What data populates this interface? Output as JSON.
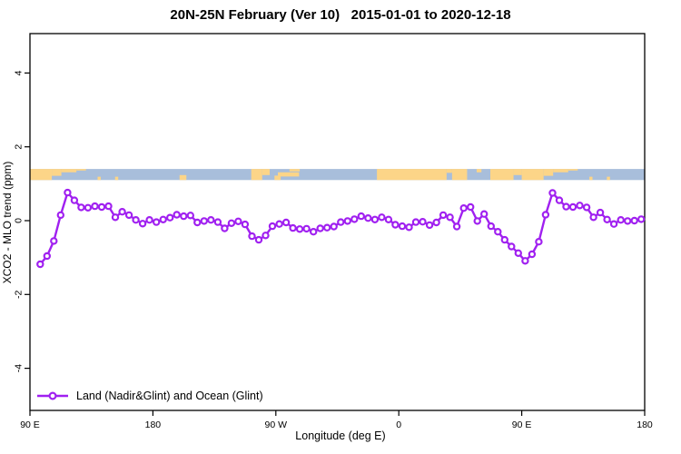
{
  "title": "20N-25N February (Ver 10)   2015-01-01 to 2020-12-18",
  "legend": {
    "label": "Land (Nadir&Glint) and Ocean (Glint)"
  },
  "colors": {
    "series": "#A020F0",
    "marker_fill": "#FFFFFF",
    "land": "#FCD588",
    "ocean": "#A8BEDB",
    "axis": "#000000",
    "background": "#FFFFFF"
  },
  "chart_data": {
    "type": "line",
    "title": "20N-25N February (Ver 10)   2015-01-01 to 2020-12-18",
    "xlabel": "Longitude (deg E)",
    "ylabel": "XCO2 - MLO trend (ppm)",
    "x_ticks": [
      {
        "label": "90 E",
        "lon": 90
      },
      {
        "label": "180",
        "lon": 180
      },
      {
        "label": "90 W",
        "lon": 270
      },
      {
        "label": "0",
        "lon": 360
      },
      {
        "label": "90 E",
        "lon": 450
      },
      {
        "label": "180",
        "lon": 540
      }
    ],
    "y_ticks": [
      "-4",
      "-2",
      "0",
      "2",
      "4"
    ],
    "y_tick_values": [
      -4,
      -2,
      0,
      2,
      4
    ],
    "xlim": [
      90,
      540
    ],
    "ylim": [
      -4.9,
      4.9
    ],
    "grid": false,
    "legend_position": "bottom-left",
    "series": [
      {
        "name": "Land (Nadir&Glint) and Ocean (Glint)",
        "marker": "open-circle",
        "x_start": 97.5,
        "x_step": 5,
        "x": [
          97.5,
          102.5,
          107.5,
          112.5,
          117.5,
          122.5,
          127.5,
          132.5,
          137.5,
          142.5,
          147.5,
          152.5,
          157.5,
          162.5,
          167.5,
          172.5,
          177.5,
          182.5,
          187.5,
          192.5,
          197.5,
          202.5,
          207.5,
          212.5,
          217.5,
          222.5,
          227.5,
          232.5,
          237.5,
          242.5,
          247.5,
          252.5,
          257.5,
          262.5,
          267.5,
          272.5,
          277.5,
          282.5,
          287.5,
          292.5,
          297.5,
          302.5,
          307.5,
          312.5,
          317.5,
          322.5,
          327.5,
          332.5,
          337.5,
          342.5,
          347.5,
          352.5,
          357.5,
          362.5,
          367.5,
          372.5,
          377.5,
          382.5,
          387.5,
          392.5,
          397.5,
          402.5,
          407.5,
          412.5,
          417.5,
          422.5,
          427.5,
          432.5,
          437.5,
          442.5,
          447.5,
          452.5,
          457.5,
          462.5,
          467.5,
          472.5,
          477.5,
          482.5,
          487.5,
          492.5,
          497.5,
          502.5,
          507.5,
          512.5,
          517.5,
          522.5,
          527.5,
          532.5,
          537.5
        ],
        "values": [
          -1.18,
          -0.96,
          -0.55,
          0.15,
          0.76,
          0.55,
          0.36,
          0.35,
          0.39,
          0.37,
          0.39,
          0.09,
          0.24,
          0.15,
          0.02,
          -0.08,
          0.02,
          -0.04,
          0.03,
          0.08,
          0.16,
          0.12,
          0.14,
          -0.05,
          -0.01,
          0.02,
          -0.04,
          -0.21,
          -0.07,
          -0.02,
          -0.1,
          -0.42,
          -0.52,
          -0.4,
          -0.15,
          -0.09,
          -0.05,
          -0.2,
          -0.23,
          -0.22,
          -0.3,
          -0.21,
          -0.19,
          -0.16,
          -0.04,
          -0.01,
          0.04,
          0.12,
          0.07,
          0.03,
          0.09,
          0.03,
          -0.11,
          -0.15,
          -0.18,
          -0.04,
          -0.03,
          -0.12,
          -0.05,
          0.15,
          0.09,
          -0.16,
          0.34,
          0.37,
          -0.01,
          0.18,
          -0.15,
          -0.3,
          -0.52,
          -0.7,
          -0.88,
          -1.09,
          -0.91,
          -0.57,
          0.16,
          0.75,
          0.55,
          0.38,
          0.37,
          0.41,
          0.36,
          0.09,
          0.22,
          0.03,
          -0.09,
          0.02,
          -0.01,
          0.0,
          0.04
        ]
      }
    ],
    "map_band": {
      "description": "coastline strip for latitude band 20N-25N",
      "value_top": 1.4,
      "value_bottom": 1.1,
      "land_segments": [
        {
          "start": 90,
          "end": 106,
          "top": 0,
          "height": 1
        },
        {
          "start": 106,
          "end": 113,
          "top": 0,
          "height": 0.62
        },
        {
          "start": 113,
          "end": 124,
          "top": 0,
          "height": 0.3
        },
        {
          "start": 124,
          "end": 131,
          "top": 0,
          "height": 0.14
        },
        {
          "start": 139.5,
          "end": 141.8,
          "top": 0.7,
          "height": 0.3
        },
        {
          "start": 152.3,
          "end": 154.6,
          "top": 0.7,
          "height": 0.3
        },
        {
          "start": 199.5,
          "end": 204.5,
          "top": 0.55,
          "height": 0.45
        },
        {
          "start": 252,
          "end": 260,
          "top": 0,
          "height": 1
        },
        {
          "start": 260,
          "end": 265.5,
          "top": 0,
          "height": 0.55
        },
        {
          "start": 269,
          "end": 273.5,
          "top": 0.6,
          "height": 0.4
        },
        {
          "start": 271.5,
          "end": 287,
          "top": 0.3,
          "height": 0.38
        },
        {
          "start": 280,
          "end": 287.5,
          "top": 0,
          "height": 0.22
        },
        {
          "start": 344,
          "end": 395,
          "top": 0,
          "height": 1
        },
        {
          "start": 395,
          "end": 399,
          "top": 0,
          "height": 0.35
        },
        {
          "start": 399,
          "end": 410,
          "top": 0,
          "height": 1
        },
        {
          "start": 417,
          "end": 420.5,
          "top": 0,
          "height": 0.3
        },
        {
          "start": 427,
          "end": 444,
          "top": 0,
          "height": 1
        },
        {
          "start": 444,
          "end": 450,
          "top": 0,
          "height": 0.55
        },
        {
          "start": 450,
          "end": 466,
          "top": 0,
          "height": 1
        },
        {
          "start": 466,
          "end": 473,
          "top": 0,
          "height": 0.62
        },
        {
          "start": 473,
          "end": 484,
          "top": 0,
          "height": 0.3
        },
        {
          "start": 484,
          "end": 491,
          "top": 0,
          "height": 0.14
        },
        {
          "start": 499.5,
          "end": 501.8,
          "top": 0.7,
          "height": 0.3
        },
        {
          "start": 512.3,
          "end": 514.6,
          "top": 0.7,
          "height": 0.3
        }
      ]
    }
  }
}
